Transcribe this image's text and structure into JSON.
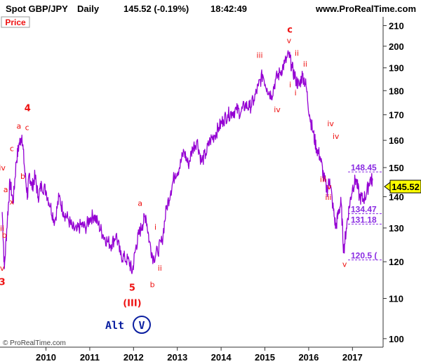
{
  "header": {
    "instrument": "Spot GBP/JPY",
    "timeframe": "Daily",
    "price_change": "145.52 (-0.19%)",
    "time": "18:42:49",
    "site": "www.ProRealTime.com"
  },
  "panel_label": "Price",
  "copyright": "© ProRealTime.com",
  "alt_label": "Alt",
  "alt_circle": "V",
  "last_price_label": "145.52",
  "colors": {
    "price_line": "#9400d3",
    "wave_labels": "#e11111",
    "level_labels": "#8a2be2",
    "last_price_badge": "#ffff00",
    "alt_text": "#0b1fa0"
  },
  "levels": [
    {
      "value": 148.45,
      "label": "148.45"
    },
    {
      "value": 134.47,
      "label": "134.47"
    },
    {
      "value": 131.18,
      "label": "131.18"
    },
    {
      "value": 120.5,
      "label": "120.5 ("
    }
  ],
  "wave_labels": [
    {
      "text": "3",
      "date": 2009.0,
      "price": 113.5,
      "big": true
    },
    {
      "text": "v",
      "date": 2009.0,
      "price": 117.5
    },
    {
      "text": "ii",
      "date": 2009.0,
      "price": 129.0
    },
    {
      "text": "b",
      "date": 2009.05,
      "price": 127.0
    },
    {
      "text": "iv",
      "date": 2009.0,
      "price": 149.0
    },
    {
      "text": "a",
      "date": 2009.08,
      "price": 141.5
    },
    {
      "text": "x",
      "date": 2009.22,
      "price": 137.5
    },
    {
      "text": "c",
      "date": 2009.22,
      "price": 156.0
    },
    {
      "text": "b",
      "date": 2009.47,
      "price": 146.0
    },
    {
      "text": "a",
      "date": 2009.38,
      "price": 164.5
    },
    {
      "text": "c",
      "date": 2009.57,
      "price": 164.0
    },
    {
      "text": "4",
      "date": 2009.58,
      "price": 171.5,
      "big": true
    },
    {
      "text": "a",
      "date": 2012.15,
      "price": 137.0
    },
    {
      "text": "i",
      "date": 2012.5,
      "price": 129.5
    },
    {
      "text": "ii",
      "date": 2012.6,
      "price": 117.5
    },
    {
      "text": "b",
      "date": 2012.43,
      "price": 113.0
    },
    {
      "text": "5",
      "date": 2011.97,
      "price": 112.0,
      "big": true
    },
    {
      "text": "(III)",
      "date": 2011.97,
      "price": 108.0,
      "big": true
    },
    {
      "text": "iii",
      "date": 2014.88,
      "price": 194.5
    },
    {
      "text": "iv",
      "date": 2015.28,
      "price": 171.0
    },
    {
      "text": "c",
      "date": 2015.57,
      "price": 206.5,
      "big": true
    },
    {
      "text": "v",
      "date": 2015.55,
      "price": 201.5
    },
    {
      "text": "ii",
      "date": 2015.73,
      "price": 195.5
    },
    {
      "text": "i",
      "date": 2015.58,
      "price": 181.5
    },
    {
      "text": "i",
      "date": 2015.7,
      "price": 178.0
    },
    {
      "text": "ii",
      "date": 2015.92,
      "price": 190.5
    },
    {
      "text": "iv",
      "date": 2016.5,
      "price": 165.5
    },
    {
      "text": "iv",
      "date": 2016.62,
      "price": 160.5
    },
    {
      "text": "iii",
      "date": 2016.33,
      "price": 145.0
    },
    {
      "text": "v",
      "date": 2016.47,
      "price": 142.5
    },
    {
      "text": "iii",
      "date": 2016.45,
      "price": 139.0
    },
    {
      "text": "v",
      "date": 2016.82,
      "price": 118.5
    }
  ],
  "chart_data": {
    "type": "line",
    "title": "Spot GBP/JPY Daily",
    "xlabel": "",
    "ylabel": "",
    "x_ticks": [
      "2010",
      "2011",
      "2012",
      "2013",
      "2014",
      "2015",
      "2016",
      "2017"
    ],
    "y_ticks": [
      100,
      110,
      120,
      130,
      140,
      150,
      160,
      170,
      180,
      190,
      200,
      210
    ],
    "xlim": [
      2008.95,
      2017.7
    ],
    "ylim": [
      98,
      213
    ],
    "y_scale": "log",
    "grid": false,
    "series": [
      {
        "name": "",
        "x": [
          2009.0,
          2009.05,
          2009.12,
          2009.18,
          2009.25,
          2009.32,
          2009.38,
          2009.45,
          2009.52,
          2009.58,
          2009.62,
          2009.68,
          2009.75,
          2009.82,
          2009.9,
          2010.0,
          2010.1,
          2010.2,
          2010.3,
          2010.4,
          2010.5,
          2010.6,
          2010.7,
          2010.8,
          2010.9,
          2011.0,
          2011.1,
          2011.2,
          2011.3,
          2011.4,
          2011.5,
          2011.6,
          2011.7,
          2011.8,
          2011.9,
          2011.97,
          2012.05,
          2012.12,
          2012.2,
          2012.28,
          2012.36,
          2012.45,
          2012.55,
          2012.65,
          2012.75,
          2012.85,
          2012.95,
          2013.05,
          2013.15,
          2013.25,
          2013.35,
          2013.45,
          2013.55,
          2013.65,
          2013.75,
          2013.85,
          2013.95,
          2014.05,
          2014.15,
          2014.25,
          2014.35,
          2014.45,
          2014.55,
          2014.65,
          2014.75,
          2014.85,
          2014.95,
          2015.05,
          2015.15,
          2015.25,
          2015.35,
          2015.45,
          2015.55,
          2015.62,
          2015.7,
          2015.78,
          2015.86,
          2015.94,
          2016.02,
          2016.1,
          2016.18,
          2016.26,
          2016.34,
          2016.42,
          2016.48,
          2016.55,
          2016.62,
          2016.68,
          2016.74,
          2016.8,
          2016.86,
          2016.93,
          2017.0,
          2017.08,
          2017.16,
          2017.24,
          2017.32,
          2017.4,
          2017.46
        ],
        "y": [
          135,
          118,
          133,
          145,
          138,
          152,
          158,
          162,
          148,
          140,
          148,
          143,
          147,
          140,
          144,
          142,
          137,
          132,
          140,
          135,
          133,
          130,
          129,
          131,
          130,
          133,
          134,
          131,
          128,
          126,
          125,
          128,
          122,
          121,
          120,
          117,
          124,
          128,
          131,
          134,
          126,
          121,
          123,
          126,
          136,
          142,
          148,
          150,
          156,
          151,
          157,
          160,
          152,
          155,
          160,
          162,
          165,
          168,
          170,
          171,
          172,
          171,
          174,
          173,
          176,
          182,
          187,
          181,
          178,
          185,
          188,
          192,
          196,
          190,
          185,
          182,
          187,
          182,
          170,
          163,
          157,
          154,
          147,
          142,
          146,
          137,
          130,
          135,
          138,
          123,
          130,
          137,
          143,
          146,
          140,
          139,
          141,
          146,
          145.52
        ]
      }
    ]
  }
}
